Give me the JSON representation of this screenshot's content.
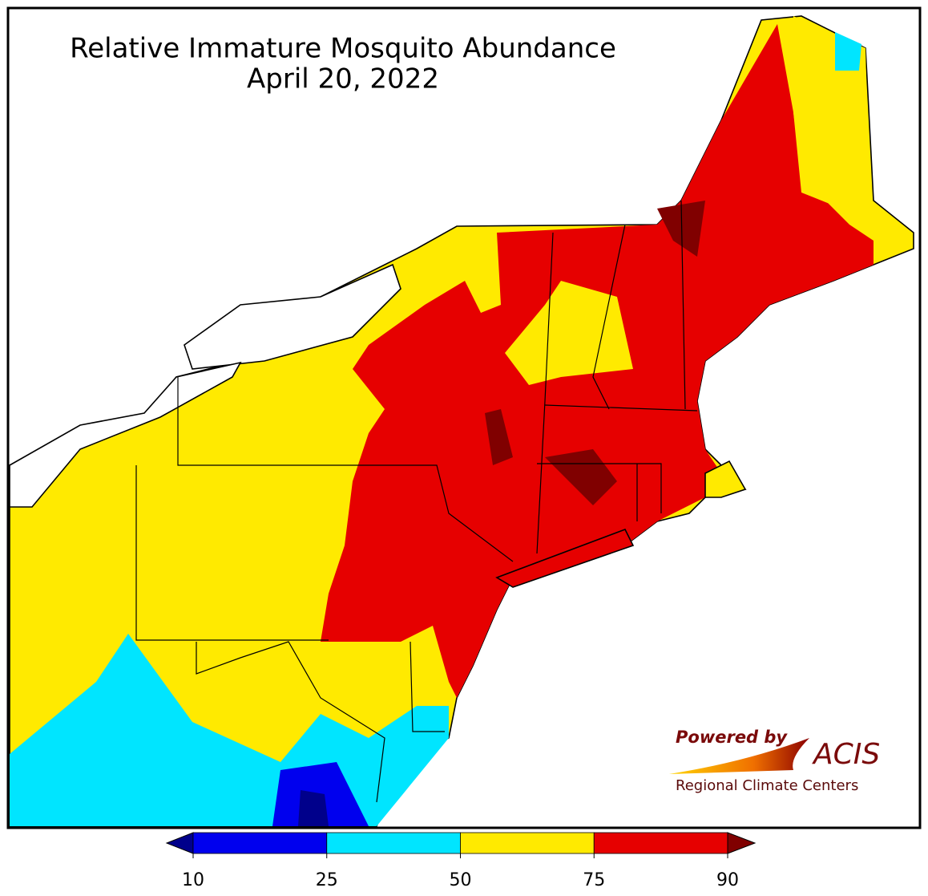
{
  "title": "Relative Immature Mosquito Abundance",
  "subtitle": "April 20, 2022",
  "colorbar": {
    "ticks": [
      10,
      25,
      50,
      75,
      90
    ],
    "colors": [
      "#00008b",
      "#0000ee",
      "#00e5ff",
      "#ffea00",
      "#e60000",
      "#800000"
    ]
  },
  "logo": {
    "powered": "Powered by",
    "name": "ACIS",
    "tagline": "Regional Climate Centers"
  }
}
